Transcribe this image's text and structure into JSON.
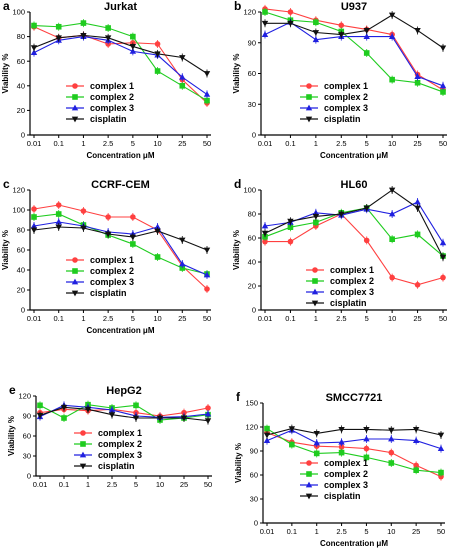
{
  "figure": {
    "series_names": [
      "complex 1",
      "complex 2",
      "complex 3",
      "cisplatin"
    ],
    "series_colors": [
      "#ff4040",
      "#1fcc1f",
      "#2020e0",
      "#111111"
    ],
    "series_markers": [
      "circle",
      "square",
      "triangle-up",
      "triangle-down"
    ],
    "x_tick_labels": [
      "0.01",
      "0.1",
      "1",
      "2.5",
      "5",
      "10",
      "25",
      "50"
    ],
    "x_axis_label": "Concentration μM",
    "y_axis_label": "Viability %"
  },
  "chart_data": [
    {
      "type": "line",
      "letter": "a",
      "title": "Jurkat",
      "xlabel": "Concentration μM",
      "ylabel": "Viability %",
      "categories": [
        "0.01",
        "0.1",
        "1",
        "2.5",
        "5",
        "10",
        "25",
        "50"
      ],
      "ylim": [
        0,
        100
      ],
      "yticks": [
        0,
        20,
        40,
        60,
        80,
        100
      ],
      "series": [
        {
          "name": "complex 1",
          "values": [
            88,
            79,
            81,
            74,
            75,
            74,
            45,
            26
          ]
        },
        {
          "name": "complex 2",
          "values": [
            89,
            88,
            91,
            87,
            80,
            52,
            40,
            28
          ]
        },
        {
          "name": "complex 3",
          "values": [
            67,
            77,
            80,
            77,
            68,
            65,
            47,
            33
          ]
        },
        {
          "name": "cisplatin",
          "values": [
            71,
            79,
            81,
            79,
            72,
            66,
            63,
            50
          ]
        }
      ]
    },
    {
      "type": "line",
      "letter": "b",
      "title": "U937",
      "xlabel": "Concentration μM",
      "ylabel": "Viability %",
      "categories": [
        "0.01",
        "0.1",
        "1",
        "2.5",
        "5",
        "10",
        "25",
        "50"
      ],
      "ylim": [
        0,
        120
      ],
      "yticks": [
        0,
        30,
        60,
        90,
        120
      ],
      "series": [
        {
          "name": "complex 1",
          "values": [
            123,
            120,
            112,
            107,
            103,
            98,
            59,
            44
          ]
        },
        {
          "name": "complex 2",
          "values": [
            120,
            112,
            110,
            101,
            80,
            54,
            51,
            42
          ]
        },
        {
          "name": "complex 3",
          "values": [
            98,
            110,
            93,
            96,
            96,
            96,
            57,
            48
          ]
        },
        {
          "name": "cisplatin",
          "values": [
            109,
            109,
            100,
            98,
            102,
            117,
            102,
            85
          ]
        }
      ]
    },
    {
      "type": "line",
      "letter": "c",
      "title": "CCRF-CEM",
      "xlabel": "Concentration μM",
      "ylabel": "Viability %",
      "categories": [
        "0.01",
        "0.1",
        "1",
        "2.5",
        "5",
        "10",
        "25",
        "50"
      ],
      "ylim": [
        0,
        120
      ],
      "yticks": [
        0,
        20,
        40,
        60,
        80,
        100,
        120
      ],
      "series": [
        {
          "name": "complex 1",
          "values": [
            101,
            105,
            99,
            93,
            93,
            80,
            44,
            21
          ]
        },
        {
          "name": "complex 2",
          "values": [
            93,
            96,
            85,
            75,
            66,
            53,
            42,
            36
          ]
        },
        {
          "name": "complex 3",
          "values": [
            84,
            88,
            84,
            78,
            76,
            83,
            46,
            35
          ]
        },
        {
          "name": "cisplatin",
          "values": [
            80,
            83,
            82,
            76,
            73,
            79,
            70,
            60
          ]
        }
      ]
    },
    {
      "type": "line",
      "letter": "d",
      "title": "HL60",
      "xlabel": "",
      "ylabel": "Viability %",
      "categories": [
        "0.01",
        "0.1",
        "1",
        "2.5",
        "5",
        "10",
        "25",
        "50"
      ],
      "ylim": [
        0,
        100
      ],
      "yticks": [
        0,
        20,
        40,
        60,
        80,
        100
      ],
      "series": [
        {
          "name": "complex 1",
          "values": [
            57,
            57,
            70,
            80,
            58,
            27,
            21,
            27
          ]
        },
        {
          "name": "complex 2",
          "values": [
            61,
            69,
            73,
            81,
            85,
            59,
            63,
            45
          ]
        },
        {
          "name": "complex 3",
          "values": [
            70,
            73,
            81,
            79,
            84,
            80,
            90,
            56
          ]
        },
        {
          "name": "cisplatin",
          "values": [
            64,
            74,
            78,
            80,
            85,
            100,
            85,
            44
          ]
        }
      ]
    },
    {
      "type": "line",
      "letter": "e",
      "title": "HepG2",
      "xlabel": "",
      "ylabel": "Viability %",
      "categories": [
        "0.01",
        "0.1",
        "1",
        "2.5",
        "5",
        "10",
        "25",
        "50"
      ],
      "ylim": [
        0,
        120
      ],
      "yticks": [
        0,
        30,
        60,
        90,
        120
      ],
      "series": [
        {
          "name": "complex 1",
          "values": [
            95,
            100,
            98,
            100,
            95,
            90,
            95,
            102
          ]
        },
        {
          "name": "complex 2",
          "values": [
            106,
            87,
            107,
            102,
            106,
            84,
            87,
            92
          ]
        },
        {
          "name": "complex 3",
          "values": [
            89,
            106,
            103,
            99,
            90,
            88,
            89,
            93
          ]
        },
        {
          "name": "cisplatin",
          "values": [
            91,
            103,
            100,
            92,
            87,
            87,
            87,
            83
          ]
        }
      ]
    },
    {
      "type": "line",
      "letter": "f",
      "title": "SMCC7721",
      "xlabel": "Concentration μM",
      "ylabel": "Viability %",
      "categories": [
        "0.01",
        "0.1",
        "1",
        "2.5",
        "5",
        "10",
        "25",
        "50"
      ],
      "ylim": [
        0,
        150
      ],
      "yticks": [
        0,
        30,
        60,
        90,
        120,
        150
      ],
      "series": [
        {
          "name": "complex 1",
          "values": [
            113,
            101,
            96,
            95,
            93,
            88,
            72,
            58
          ]
        },
        {
          "name": "complex 2",
          "values": [
            118,
            98,
            87,
            88,
            82,
            75,
            66,
            63
          ]
        },
        {
          "name": "complex 3",
          "values": [
            103,
            116,
            100,
            101,
            105,
            105,
            103,
            93
          ]
        },
        {
          "name": "cisplatin",
          "values": [
            110,
            118,
            112,
            117,
            117,
            116,
            117,
            110
          ]
        }
      ]
    }
  ]
}
